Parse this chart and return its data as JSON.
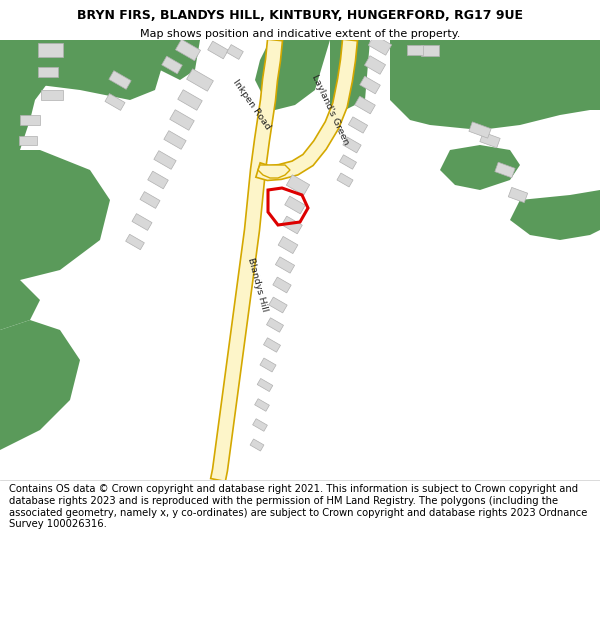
{
  "title_line1": "BRYN FIRS, BLANDYS HILL, KINTBURY, HUNGERFORD, RG17 9UE",
  "title_line2": "Map shows position and indicative extent of the property.",
  "footer_text": "Contains OS data © Crown copyright and database right 2021. This information is subject to Crown copyright and database rights 2023 and is reproduced with the permission of HM Land Registry. The polygons (including the associated geometry, namely x, y co-ordinates) are subject to Crown copyright and database rights 2023 Ordnance Survey 100026316.",
  "map_bg": "#ffffff",
  "road_yellow_fill": "#fdf5c9",
  "road_outline_color": "#d4a800",
  "green_color": "#5a9a5a",
  "building_color": "#d8d8d8",
  "building_outline": "#b0b0b0",
  "plot_outline_color": "#dd0000",
  "plot_linewidth": 2.2,
  "title_fontsize": 9,
  "subtitle_fontsize": 8,
  "footer_fontsize": 7.2,
  "road_label_fontsize": 6.8
}
